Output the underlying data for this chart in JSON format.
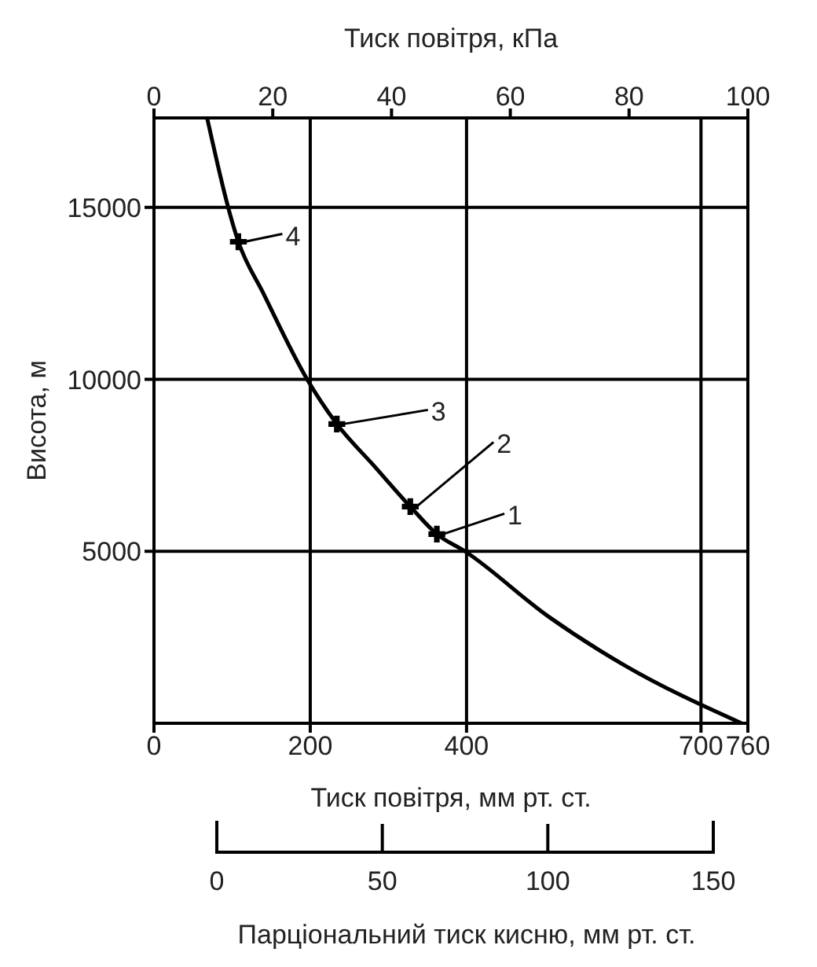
{
  "chart_data": {
    "type": "line",
    "xlabel": "Тиск повітря, мм рт. ст.",
    "xlim": [
      0,
      760
    ],
    "xticks": [
      0,
      200,
      400,
      700,
      760
    ],
    "x2label": "Тиск повітря, кПа",
    "x2lim": [
      0,
      100
    ],
    "x2ticks": [
      0,
      20,
      40,
      60,
      80,
      100
    ],
    "ylabel": "Висота, м",
    "ylim": [
      0,
      17600
    ],
    "yticks": [
      5000,
      10000,
      15000
    ],
    "grid": true,
    "series": [
      {
        "color": "#000000",
        "marker": "none",
        "x": [
          68,
          108,
          140,
          196,
          234,
          281,
          328,
          362,
          398,
          505,
          601,
          752
        ],
        "values": [
          17600,
          14000,
          12500,
          10000,
          8700,
          7500,
          6300,
          5500,
          5000,
          3100,
          1700,
          0
        ]
      },
      {
        "type": "scatter",
        "color": "#000000",
        "marker": "cross",
        "x": [
          108,
          234,
          328,
          362
        ],
        "values": [
          14000,
          8700,
          6300,
          5500
        ]
      }
    ],
    "annotations": [
      {
        "text": "1",
        "x": 362,
        "y": 5500
      },
      {
        "text": "2",
        "x": 328,
        "y": 6300
      },
      {
        "text": "3",
        "x": 234,
        "y": 8700
      },
      {
        "text": "4",
        "x": 108,
        "y": 14000
      },
      "0",
      "50",
      "100",
      "150",
      "Парціональний тиск кисню, мм рт. ст."
    ]
  }
}
